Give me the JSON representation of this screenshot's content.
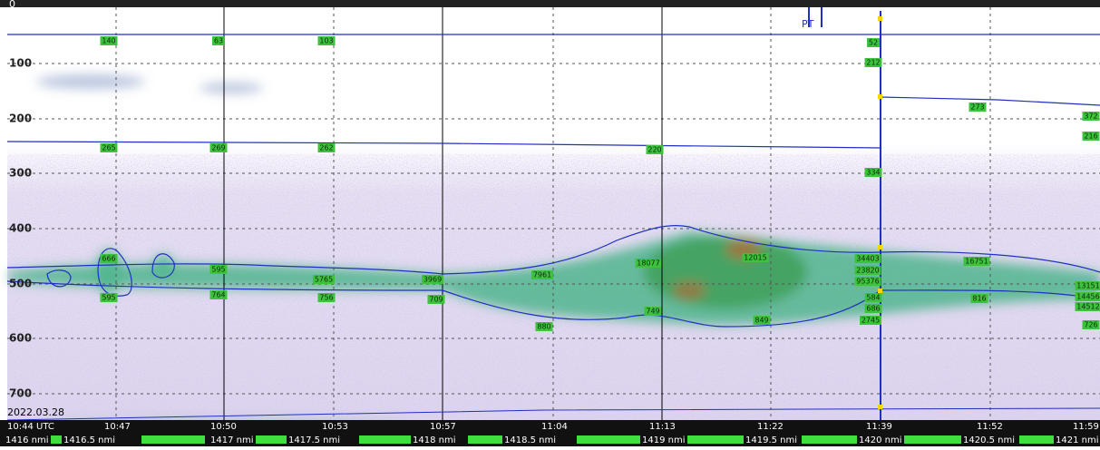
{
  "date": "2022.03.28",
  "top_marker": "0",
  "pt_marker": "PT",
  "depth_labels": [
    "100",
    "200",
    "300",
    "400",
    "500",
    "600",
    "700"
  ],
  "time_labels": [
    "10:44 UTC",
    "10:47",
    "10:50",
    "10:53",
    "10:57",
    "11:04",
    "11:13",
    "11:22",
    "11:39",
    "11:52",
    "11:59"
  ],
  "distance_labels": [
    "1416 nmi",
    "1416.5 nmi",
    "1417 nmi",
    "1417.5 nmi",
    "1418 nmi",
    "1418.5 nmi",
    "1419 nmi",
    "1419.5 nmi",
    "1420 nmi",
    "1420.5 nmi",
    "1421 nmi"
  ],
  "region_labels": [
    "140",
    "63",
    "103",
    "52",
    "212",
    "265",
    "269",
    "262",
    "220",
    "273",
    "372",
    "216",
    "334",
    "666",
    "595",
    "595",
    "764",
    "5765",
    "756",
    "3969",
    "709",
    "7961",
    "18077",
    "749",
    "880",
    "12015",
    "849",
    "34403",
    "23820",
    "95376",
    "584",
    "686",
    "2745",
    "16751",
    "816",
    "13151",
    "14456",
    "14512",
    "726"
  ]
}
